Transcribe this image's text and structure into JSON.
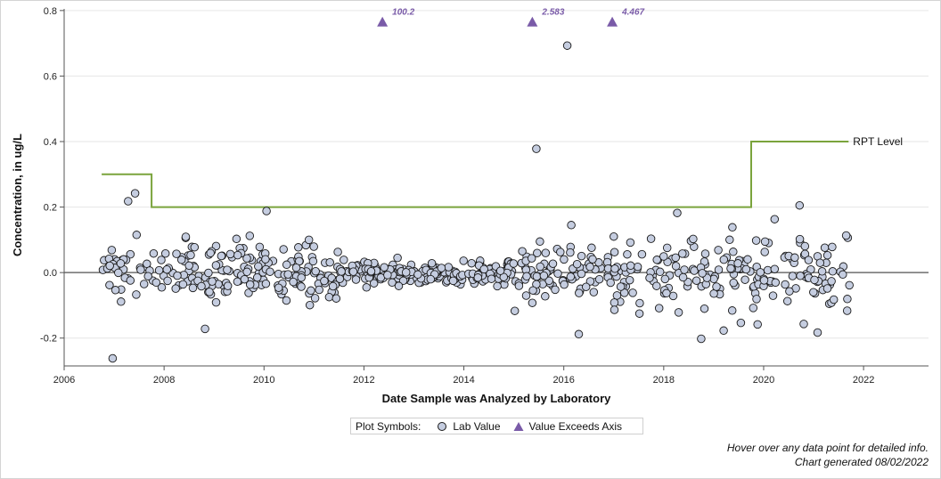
{
  "chart_data": {
    "type": "scatter",
    "xlabel": "Date Sample was Analyzed by Laboratory",
    "ylabel": "Concentration, in ug/L",
    "xlim": [
      2006,
      2023.3
    ],
    "ylim": [
      -0.285,
      0.805
    ],
    "x_ticks": [
      2006,
      2008,
      2010,
      2012,
      2014,
      2016,
      2018,
      2020,
      2022
    ],
    "y_ticks": [
      -0.2,
      0.0,
      0.2,
      0.4,
      0.6,
      0.8
    ],
    "y_tick_labels": [
      "-0.2",
      "0.0",
      "0.2",
      "0.4",
      "0.6",
      "0.8"
    ],
    "grid": "horizontal",
    "zero_line": true,
    "colors": {
      "lab_value_fill": "#c5cde0",
      "lab_value_stroke": "#1a1a1a",
      "exceeds_fill": "#7a5ba8",
      "rpt_line": "#7aa43c",
      "grid": "#e6e6e6"
    },
    "rpt_level": {
      "label": "RPT Level",
      "steps": [
        [
          2006.75,
          0.3
        ],
        [
          2007.75,
          0.3
        ],
        [
          2007.75,
          0.2
        ],
        [
          2019.75,
          0.2
        ],
        [
          2019.75,
          0.4
        ],
        [
          2021.7,
          0.4
        ]
      ]
    },
    "exceeds_axis": [
      {
        "x": 2012.37,
        "value": "100.2"
      },
      {
        "x": 2015.37,
        "value": "2.583"
      },
      {
        "x": 2016.97,
        "value": "4.467"
      }
    ],
    "notable_points": [
      {
        "x": 2016.07,
        "y": 0.693
      },
      {
        "x": 2015.45,
        "y": 0.378
      },
      {
        "x": 2007.42,
        "y": 0.242
      },
      {
        "x": 2007.28,
        "y": 0.218
      },
      {
        "x": 2010.05,
        "y": 0.188
      },
      {
        "x": 2018.27,
        "y": 0.182
      },
      {
        "x": 2020.72,
        "y": 0.205
      },
      {
        "x": 2020.22,
        "y": 0.163
      },
      {
        "x": 2006.97,
        "y": -0.262
      },
      {
        "x": 2018.75,
        "y": -0.202
      },
      {
        "x": 2016.3,
        "y": -0.188
      },
      {
        "x": 2021.08,
        "y": -0.183
      },
      {
        "x": 2008.82,
        "y": -0.172
      },
      {
        "x": 2019.2,
        "y": -0.177
      },
      {
        "x": 2015.02,
        "y": -0.117
      },
      {
        "x": 2007.45,
        "y": 0.115
      },
      {
        "x": 2009.45,
        "y": 0.103
      },
      {
        "x": 2010.9,
        "y": 0.1
      },
      {
        "x": 2016.15,
        "y": 0.145
      },
      {
        "x": 2017.0,
        "y": 0.11
      },
      {
        "x": 2019.85,
        "y": 0.098
      }
    ]
  },
  "legend": {
    "title": "Plot Symbols:",
    "items": [
      {
        "label": "Lab Value",
        "symbol": "circle"
      },
      {
        "label": "Value Exceeds Axis",
        "symbol": "triangle"
      }
    ]
  },
  "footer": {
    "hover_note": "Hover over any data point for detailed info.",
    "generated": "Chart generated 08/02/2022"
  }
}
